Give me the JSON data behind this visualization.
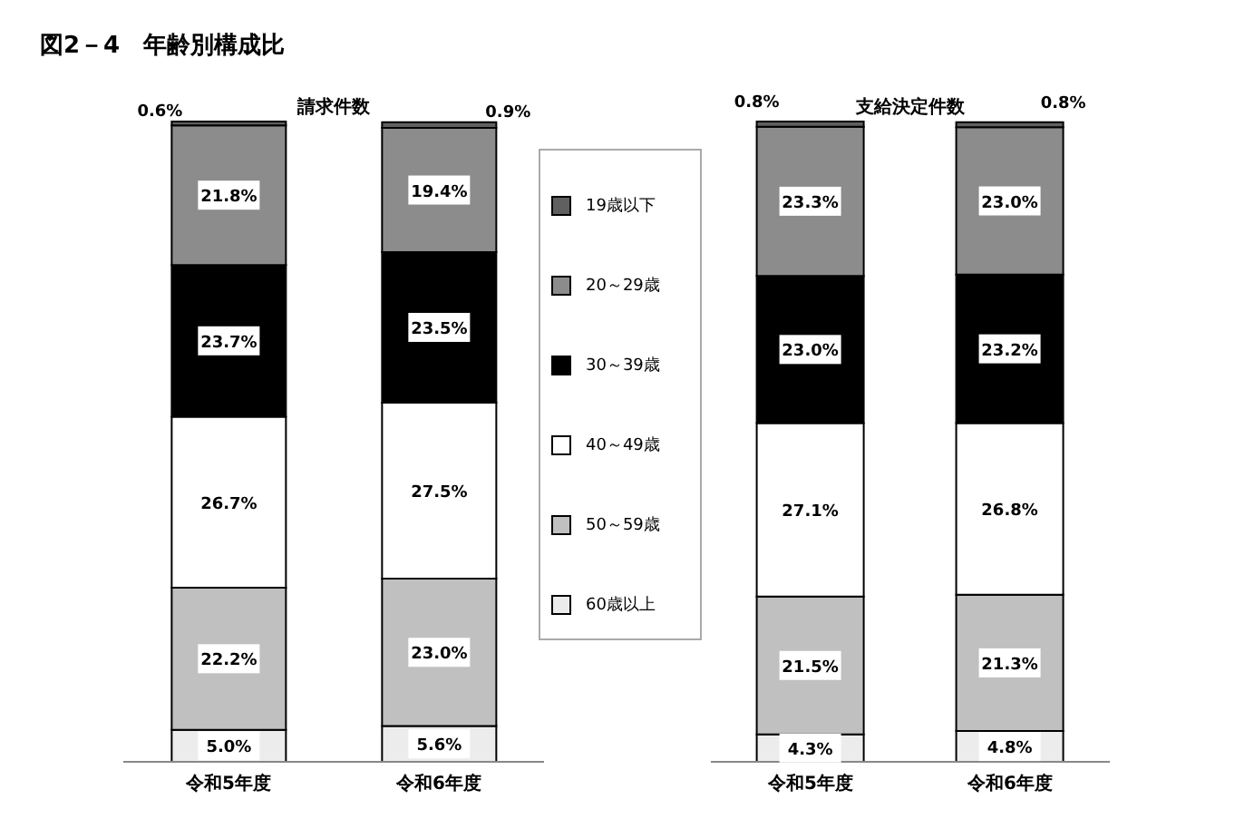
{
  "chart_data": [
    {
      "type": "bar",
      "title": "図2－4　年齢別構成比",
      "subtitle": "請求件数",
      "stacked": true,
      "legend": "right",
      "categories": [
        "令和5年度",
        "令和6年度"
      ],
      "series": [
        {
          "name": "60歳以上",
          "color": "#ececec",
          "values": [
            5.0,
            5.6
          ],
          "value_labels": [
            "5.0%",
            "5.6%"
          ]
        },
        {
          "name": "50～59歳",
          "color": "#c0c0c0",
          "values": [
            22.2,
            23.0
          ],
          "value_labels": [
            "22.2%",
            "23.0%"
          ]
        },
        {
          "name": "40～49歳",
          "color": "#ffffff",
          "values": [
            26.7,
            27.5
          ],
          "value_labels": [
            "26.7%",
            "27.5%"
          ]
        },
        {
          "name": "30～39歳",
          "color": "#000000",
          "values": [
            23.7,
            23.5
          ],
          "value_labels": [
            "23.7%",
            "23.5%"
          ]
        },
        {
          "name": "20～29歳",
          "color": "#8c8c8c",
          "values": [
            21.8,
            19.4
          ],
          "value_labels": [
            "21.8%",
            "19.4%"
          ]
        },
        {
          "name": "19歳以下",
          "color": "#606060",
          "values": [
            0.6,
            0.9
          ],
          "value_labels": [
            "0.6%",
            "0.9%"
          ]
        }
      ]
    },
    {
      "type": "bar",
      "subtitle": "支給決定件数",
      "stacked": true,
      "categories": [
        "令和5年度",
        "令和6年度"
      ],
      "series": [
        {
          "color": "#ececec",
          "values": [
            4.3,
            4.8
          ],
          "value_labels": [
            "4.3%",
            "4.8%"
          ]
        },
        {
          "color": "#c0c0c0",
          "values": [
            21.5,
            21.3
          ],
          "value_labels": [
            "21.5%",
            "21.3%"
          ]
        },
        {
          "color": "#ffffff",
          "values": [
            27.1,
            26.8
          ],
          "value_labels": [
            "27.1%",
            "26.8%"
          ]
        },
        {
          "color": "#000000",
          "values": [
            23.0,
            23.2
          ],
          "value_labels": [
            "23.0%",
            "23.2%"
          ]
        },
        {
          "color": "#8c8c8c",
          "values": [
            23.3,
            23.0
          ],
          "value_labels": [
            "23.3%",
            "23.0%"
          ]
        },
        {
          "color": "#606060",
          "values": [
            0.8,
            0.8
          ],
          "value_labels": [
            "0.8%",
            "0.8%"
          ]
        }
      ]
    }
  ]
}
